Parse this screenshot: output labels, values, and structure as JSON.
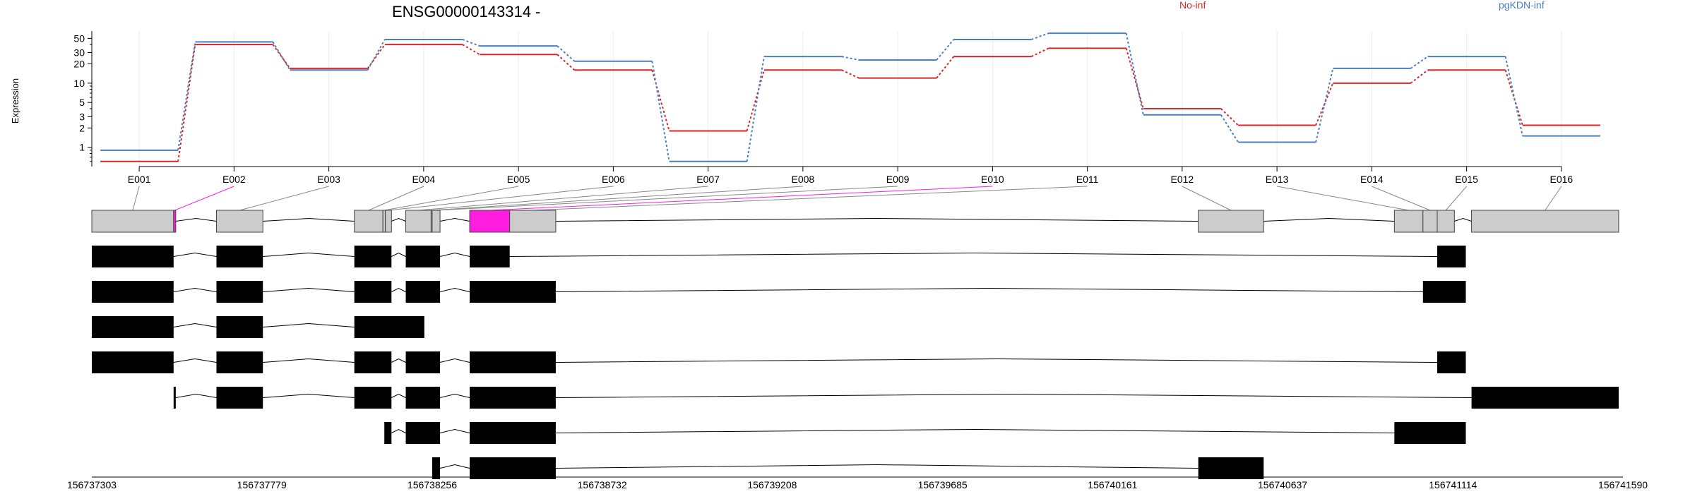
{
  "title": "ENSG00000143314 -",
  "legend": [
    {
      "label": "No-inf",
      "color": "#d62728"
    },
    {
      "label": "pgKDN-inf",
      "color": "#4a7fc1"
    }
  ],
  "highlight_color": "#ff1ee0",
  "chart_data": {
    "type": "line",
    "title": "ENSG00000143314 -",
    "ylabel": "Expression",
    "y_scale": "log",
    "y_tick_labels": [
      "1",
      "2",
      "3",
      "5",
      "10",
      "20",
      "30",
      "50"
    ],
    "grid": true,
    "categories": [
      "E001",
      "E002",
      "E003",
      "E004",
      "E005",
      "E006",
      "E007",
      "E008",
      "E009",
      "E010",
      "E011",
      "E012",
      "E013",
      "E014",
      "E015",
      "E016"
    ],
    "series": [
      {
        "name": "No-inf",
        "color": "#d62728",
        "values": [
          0.6,
          40,
          17,
          40,
          28,
          16,
          1.8,
          16,
          12,
          26,
          35,
          4,
          2.2,
          10,
          16,
          2.2
        ]
      },
      {
        "name": "pgKDN-inf",
        "color": "#4a7fc1",
        "values": [
          0.9,
          44,
          16,
          48,
          38,
          22,
          0.6,
          26,
          23,
          48,
          60,
          3.2,
          1.2,
          17,
          26,
          1.5
        ]
      }
    ]
  },
  "genome_axis_labels": [
    "156737303",
    "156737779",
    "156738256",
    "156738732",
    "156739208",
    "156739685",
    "156740161",
    "156740637",
    "156741114",
    "156741590"
  ],
  "gene_model": {
    "exons": [
      {
        "id": "E001",
        "start": 156737303,
        "end": 156737532
      },
      {
        "id": "E002",
        "start": 156737532,
        "end": 156737538
      },
      {
        "id": "E003",
        "start": 156737652,
        "end": 156737782
      },
      {
        "id": "E004",
        "start": 156738038,
        "end": 156738118
      },
      {
        "id": "E005",
        "start": 156738118,
        "end": 156738125
      },
      {
        "id": "E006",
        "start": 156738125,
        "end": 156738142
      },
      {
        "id": "E007",
        "start": 156738182,
        "end": 156738253
      },
      {
        "id": "E008",
        "start": 156738253,
        "end": 156738256
      },
      {
        "id": "E009",
        "start": 156738256,
        "end": 156738278
      },
      {
        "id": "E010",
        "start": 156738361,
        "end": 156738473
      },
      {
        "id": "E011",
        "start": 156738473,
        "end": 156738602
      },
      {
        "id": "E012",
        "start": 156740401,
        "end": 156740584
      },
      {
        "id": "E013",
        "start": 156740950,
        "end": 156741030
      },
      {
        "id": "E014",
        "start": 156741030,
        "end": 156741070
      },
      {
        "id": "E015",
        "start": 156741070,
        "end": 156741118
      },
      {
        "id": "E016",
        "start": 156741166,
        "end": 156741578
      }
    ],
    "highlighted_exons": [
      "E002",
      "E010"
    ],
    "transcripts": [
      [
        [
          156737303,
          156737532
        ],
        [
          156737652,
          156737782
        ],
        [
          156738038,
          156738142
        ],
        [
          156738182,
          156738278
        ],
        [
          156738361,
          156738473
        ],
        [
          156741070,
          156741150
        ]
      ],
      [
        [
          156737303,
          156737532
        ],
        [
          156737652,
          156737782
        ],
        [
          156738038,
          156738142
        ],
        [
          156738182,
          156738278
        ],
        [
          156738361,
          156738602
        ],
        [
          156741030,
          156741150
        ]
      ],
      [
        [
          156737303,
          156737532
        ],
        [
          156737652,
          156737782
        ],
        [
          156738038,
          156738234
        ]
      ],
      [
        [
          156737303,
          156737532
        ],
        [
          156737652,
          156737782
        ],
        [
          156738038,
          156738142
        ],
        [
          156738182,
          156738278
        ],
        [
          156738361,
          156738602
        ],
        [
          156741070,
          156741150
        ]
      ],
      [
        [
          156737532,
          156737538
        ],
        [
          156737652,
          156737782
        ],
        [
          156738038,
          156738142
        ],
        [
          156738182,
          156738278
        ],
        [
          156738361,
          156738602
        ],
        [
          156741166,
          156741578
        ]
      ],
      [
        [
          156738122,
          156738142
        ],
        [
          156738182,
          156738278
        ],
        [
          156738361,
          156738602
        ],
        [
          156740950,
          156741150
        ]
      ],
      [
        [
          156738256,
          156738278
        ],
        [
          156738361,
          156738602
        ],
        [
          156740401,
          156740584
        ]
      ]
    ]
  }
}
